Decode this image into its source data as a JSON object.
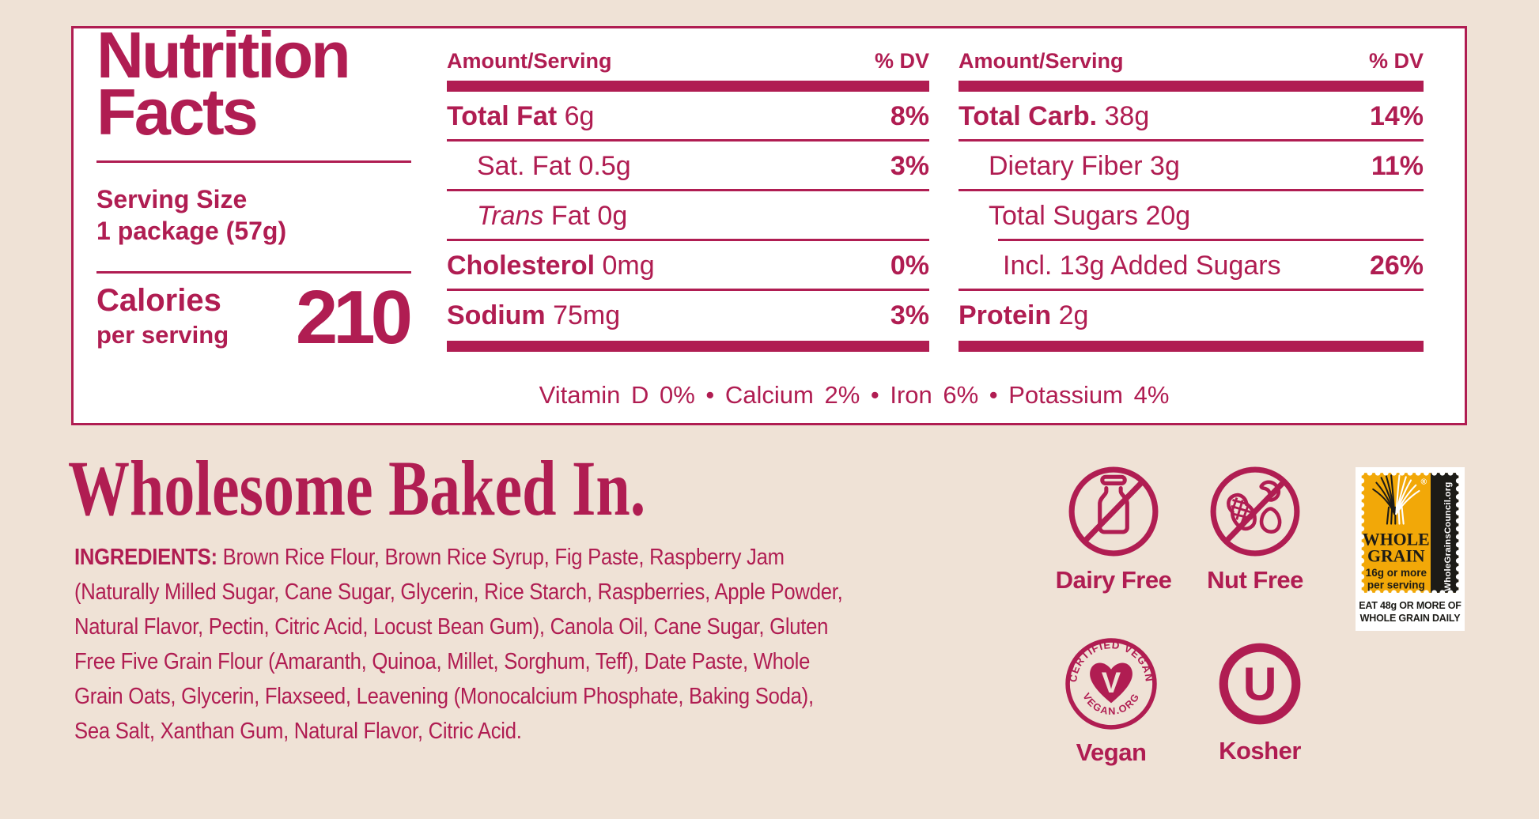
{
  "colors": {
    "brand": "#B01D52",
    "background": "#EFE2D6",
    "panel_bg": "#FFFFFF",
    "stamp_yellow": "#F2A808",
    "stamp_black": "#1C1B17"
  },
  "nutrition_panel": {
    "title_line1": "Nutrition",
    "title_line2": "Facts",
    "serving_size_label": "Serving Size",
    "serving_size_value": "1 package (57g)",
    "calories_label": "Calories",
    "calories_sublabel": "per serving",
    "calories_value": "210",
    "columns": [
      {
        "header_amount": "Amount/Serving",
        "header_dv": "% DV",
        "rows": [
          {
            "parts": [
              {
                "t": "Total Fat ",
                "s": "b"
              },
              {
                "t": "6g",
                "s": "r"
              }
            ],
            "dv": "8%",
            "indent": 0,
            "rule": "thin"
          },
          {
            "parts": [
              {
                "t": "Sat. Fat 0.5g",
                "s": "r"
              }
            ],
            "dv": "3%",
            "indent": 1,
            "rule": "thin"
          },
          {
            "parts": [
              {
                "t": "Trans",
                "s": "i"
              },
              {
                "t": " Fat 0g",
                "s": "r"
              }
            ],
            "dv": "",
            "indent": 1,
            "rule": "thin"
          },
          {
            "parts": [
              {
                "t": "Cholesterol ",
                "s": "b"
              },
              {
                "t": "0mg",
                "s": "r"
              }
            ],
            "dv": "0%",
            "indent": 0,
            "rule": "thin"
          },
          {
            "parts": [
              {
                "t": "Sodium ",
                "s": "b"
              },
              {
                "t": "75mg",
                "s": "r"
              }
            ],
            "dv": "3%",
            "indent": 0,
            "rule": "none"
          }
        ]
      },
      {
        "header_amount": "Amount/Serving",
        "header_dv": "% DV",
        "rows": [
          {
            "parts": [
              {
                "t": "Total Carb. ",
                "s": "b"
              },
              {
                "t": "38g",
                "s": "r"
              }
            ],
            "dv": "14%",
            "indent": 0,
            "rule": "thin"
          },
          {
            "parts": [
              {
                "t": "Dietary Fiber 3g",
                "s": "r"
              }
            ],
            "dv": "11%",
            "indent": 1,
            "rule": "thin"
          },
          {
            "parts": [
              {
                "t": "Total Sugars 20g",
                "s": "r"
              }
            ],
            "dv": "",
            "indent": 1,
            "rule": "thin",
            "rule_indent": 50
          },
          {
            "parts": [
              {
                "t": "Incl. 13g Added Sugars",
                "s": "r"
              }
            ],
            "dv": "26%",
            "indent": 2,
            "rule": "thin"
          },
          {
            "parts": [
              {
                "t": "Protein ",
                "s": "b"
              },
              {
                "t": "2g",
                "s": "r"
              }
            ],
            "dv": "",
            "indent": 0,
            "rule": "none"
          }
        ]
      }
    ],
    "micronutrients": "Vitamin D 0% • Calcium 2% • Iron 6% • Potassium 4%"
  },
  "marketing": {
    "tagline": "Wholesome Baked In."
  },
  "ingredients": {
    "label": "INGREDIENTS:",
    "text": "Brown Rice Flour, Brown Rice Syrup, Fig Paste, Raspberry Jam (Naturally Milled Sugar, Cane Sugar, Glycerin, Rice Starch, Raspberries, Apple Powder, Natural Flavor, Pectin, Citric Acid, Locust Bean Gum), Canola Oil, Cane Sugar, Gluten Free Five Grain Flour (Amaranth, Quinoa, Millet, Sorghum, Teff), Date Paste, Whole Grain Oats, Glycerin, Flaxseed, Leavening (Monocalcium Phosphate, Baking Soda), Sea Salt, Xanthan Gum, Natural Flavor, Citric Acid."
  },
  "badges": {
    "dairy_free_label": "Dairy Free",
    "nut_free_label": "Nut Free",
    "vegan_label": "Vegan",
    "kosher_label": "Kosher",
    "vegan_seal_top": "CERTIFIED VEGAN",
    "vegan_seal_bottom": "VEGAN.ORG",
    "kosher_letter": "U"
  },
  "whole_grain_stamp": {
    "title_line1": "WHOLE",
    "title_line2": "GRAIN",
    "amount_line1": "16g or more",
    "amount_line2": "per serving",
    "side_text": "WholeGrainsCouncil.org",
    "registered_mark": "®",
    "footer_line1": "EAT 48g OR MORE OF",
    "footer_line2": "WHOLE GRAIN DAILY"
  }
}
